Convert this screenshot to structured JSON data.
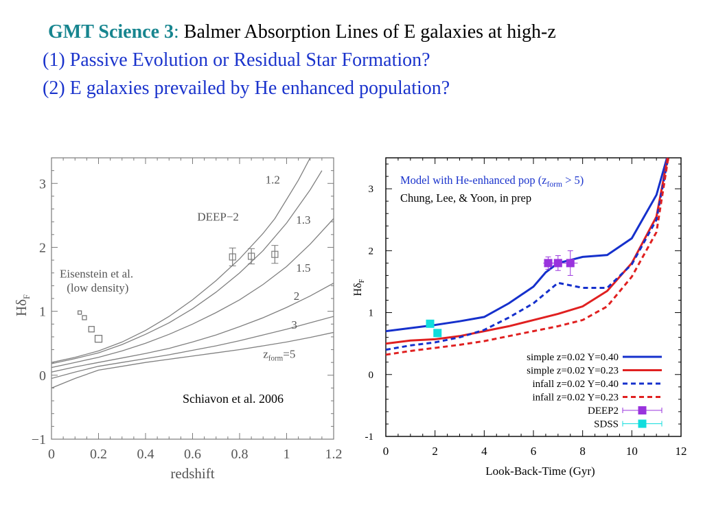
{
  "slide": {
    "title_accent": "GMT Science 3",
    "title_colon": ":",
    "title_rest": " Balmer Absorption Lines of E galaxies at high-z",
    "question_1": "(1) Passive Evolution or Residual Star Formation?",
    "question_2": "(2) E galaxies prevailed by He enhanced population?",
    "colors": {
      "title_accent": "#17858f",
      "question_text": "#1a33cc"
    }
  },
  "chart_data": [
    {
      "type": "line",
      "panel": "left",
      "xlabel": "redshift",
      "ylabel": "Hδ",
      "ylabel_sub": "F",
      "xlim": [
        0,
        1.2
      ],
      "ylim": [
        -1,
        3.4
      ],
      "xticks": [
        "0",
        "0.2",
        "0.4",
        "0.6",
        "0.8",
        "1",
        "1.2"
      ],
      "yticks": [
        "−1",
        "0",
        "1",
        "2",
        "3"
      ],
      "series": [
        {
          "name": "1.2",
          "x": [
            0,
            0.1,
            0.2,
            0.3,
            0.4,
            0.5,
            0.6,
            0.7,
            0.8,
            0.9,
            0.95,
            1.0,
            1.05,
            1.1
          ],
          "y": [
            0.2,
            0.28,
            0.38,
            0.52,
            0.7,
            0.92,
            1.18,
            1.48,
            1.82,
            2.22,
            2.45,
            2.75,
            3.05,
            3.4
          ]
        },
        {
          "name": "1.3",
          "x": [
            0,
            0.1,
            0.2,
            0.3,
            0.4,
            0.5,
            0.6,
            0.7,
            0.8,
            0.9,
            1.0,
            1.1,
            1.15
          ],
          "y": [
            0.18,
            0.26,
            0.35,
            0.48,
            0.64,
            0.82,
            1.04,
            1.3,
            1.6,
            1.95,
            2.38,
            2.9,
            3.2
          ]
        },
        {
          "name": "1.5",
          "x": [
            0,
            0.1,
            0.2,
            0.3,
            0.4,
            0.5,
            0.6,
            0.7,
            0.8,
            0.9,
            1.0,
            1.1,
            1.2
          ],
          "y": [
            0.12,
            0.2,
            0.28,
            0.38,
            0.5,
            0.64,
            0.8,
            0.98,
            1.18,
            1.42,
            1.7,
            2.05,
            2.45
          ]
        },
        {
          "name": "2",
          "x": [
            0,
            0.1,
            0.2,
            0.3,
            0.4,
            0.5,
            0.6,
            0.7,
            0.8,
            0.9,
            1.0,
            1.1,
            1.2
          ],
          "y": [
            0.05,
            0.13,
            0.2,
            0.27,
            0.34,
            0.42,
            0.52,
            0.63,
            0.76,
            0.9,
            1.06,
            1.24,
            1.44
          ]
        },
        {
          "name": "3",
          "x": [
            0,
            0.1,
            0.2,
            0.3,
            0.4,
            0.5,
            0.6,
            0.7,
            0.8,
            0.9,
            1.0,
            1.1,
            1.2
          ],
          "y": [
            -0.05,
            0.05,
            0.14,
            0.2,
            0.26,
            0.32,
            0.39,
            0.46,
            0.54,
            0.63,
            0.72,
            0.82,
            0.92
          ]
        },
        {
          "name": "5",
          "x": [
            0,
            0.1,
            0.2,
            0.3,
            0.4,
            0.5,
            0.6,
            0.7,
            0.8,
            0.9,
            1.0,
            1.1,
            1.2
          ],
          "y": [
            -0.2,
            -0.05,
            0.08,
            0.14,
            0.2,
            0.25,
            0.3,
            0.35,
            0.4,
            0.46,
            0.52,
            0.59,
            0.67
          ]
        }
      ],
      "curve_labels": [
        {
          "text": "1.2",
          "x": 0.91,
          "y": 3.0
        },
        {
          "text": "1.3",
          "x": 1.04,
          "y": 2.37
        },
        {
          "text": "1.5",
          "x": 1.04,
          "y": 1.62
        },
        {
          "text": "2",
          "x": 1.03,
          "y": 1.18
        },
        {
          "text": "3",
          "x": 1.02,
          "y": 0.73
        }
      ],
      "zform_label": {
        "base": "z",
        "sub": "form",
        "rest": "=5",
        "x": 0.9,
        "y": 0.27
      },
      "points_deep2": {
        "x": [
          0.77,
          0.85,
          0.95
        ],
        "y": [
          1.85,
          1.86,
          1.89
        ],
        "err": [
          0.14,
          0.12,
          0.14
        ]
      },
      "points_sdss": {
        "x": [
          0.12,
          0.14,
          0.17,
          0.2
        ],
        "y": [
          0.98,
          0.9,
          0.72,
          0.57
        ],
        "size": [
          1,
          1.2,
          1.6,
          2
        ]
      },
      "annotations": [
        {
          "text": "DEEP−2",
          "x": 0.62,
          "y": 2.42
        },
        {
          "text": "Eisenstein et al.",
          "x": 0.035,
          "y": 1.53
        },
        {
          "text": "(low density)",
          "x": 0.065,
          "y": 1.31
        }
      ],
      "credit": "Schiavon et al. 2006"
    },
    {
      "type": "line",
      "panel": "right",
      "xlabel": "Look-Back-Time (Gyr)",
      "ylabel": "Hδ",
      "ylabel_sub": "F",
      "xlim": [
        0,
        12
      ],
      "ylim": [
        -1,
        3.5
      ],
      "xticks": [
        "0",
        "2",
        "4",
        "6",
        "8",
        "10",
        "12"
      ],
      "yticks": [
        "-1",
        "0",
        "1",
        "2",
        "3"
      ],
      "model_label": {
        "text": "Model with He-enhanced pop (z",
        "sub": "form",
        "rest": " > 5)",
        "color": "#1a33cc"
      },
      "credit": "Chung, Lee, & Yoon, in prep",
      "series": [
        {
          "name": "simple z=0.02 Y=0.40",
          "color": "#1530cc",
          "dash": false,
          "x": [
            0,
            1,
            2,
            3,
            4,
            5,
            6,
            6.5,
            7,
            7.5,
            8,
            9,
            10,
            11,
            11.5
          ],
          "y": [
            0.7,
            0.75,
            0.8,
            0.86,
            0.93,
            1.15,
            1.42,
            1.65,
            1.8,
            1.85,
            1.9,
            1.93,
            2.2,
            2.9,
            3.6
          ]
        },
        {
          "name": "simple z=0.02 Y=0.23",
          "color": "#e02020",
          "dash": false,
          "x": [
            0,
            1,
            2,
            3,
            4,
            5,
            6,
            7,
            8,
            9,
            10,
            11,
            11.5
          ],
          "y": [
            0.5,
            0.55,
            0.57,
            0.62,
            0.7,
            0.78,
            0.88,
            0.98,
            1.1,
            1.35,
            1.8,
            2.55,
            3.6
          ]
        },
        {
          "name": "infall z=0.02 Y=0.40",
          "color": "#1530cc",
          "dash": true,
          "x": [
            0,
            1,
            2,
            3,
            4,
            5,
            6,
            7,
            8,
            9,
            10,
            11,
            11.5
          ],
          "y": [
            0.4,
            0.47,
            0.52,
            0.6,
            0.72,
            0.92,
            1.15,
            1.48,
            1.4,
            1.4,
            1.78,
            2.5,
            3.55
          ]
        },
        {
          "name": "infall z=0.02 Y=0.23",
          "color": "#e02020",
          "dash": true,
          "x": [
            0,
            1,
            2,
            3,
            4,
            5,
            6,
            7,
            8,
            9,
            10,
            11,
            11.5
          ],
          "y": [
            0.32,
            0.38,
            0.43,
            0.48,
            0.54,
            0.62,
            0.7,
            0.78,
            0.88,
            1.1,
            1.58,
            2.3,
            3.55
          ]
        }
      ],
      "points": [
        {
          "name": "DEEP2",
          "color": "#9933dd",
          "x": [
            6.6,
            7.0,
            7.5
          ],
          "y": [
            1.8,
            1.8,
            1.8
          ],
          "yerr": [
            0.1,
            0.12,
            0.2
          ],
          "xerr": [
            0.2,
            0.3,
            0.3
          ]
        },
        {
          "name": "SDSS",
          "color": "#11dddd",
          "x": [
            1.8,
            2.1
          ],
          "y": [
            0.82,
            0.67
          ],
          "yerr": [
            0,
            0
          ],
          "xerr": [
            0,
            0
          ]
        }
      ]
    }
  ]
}
